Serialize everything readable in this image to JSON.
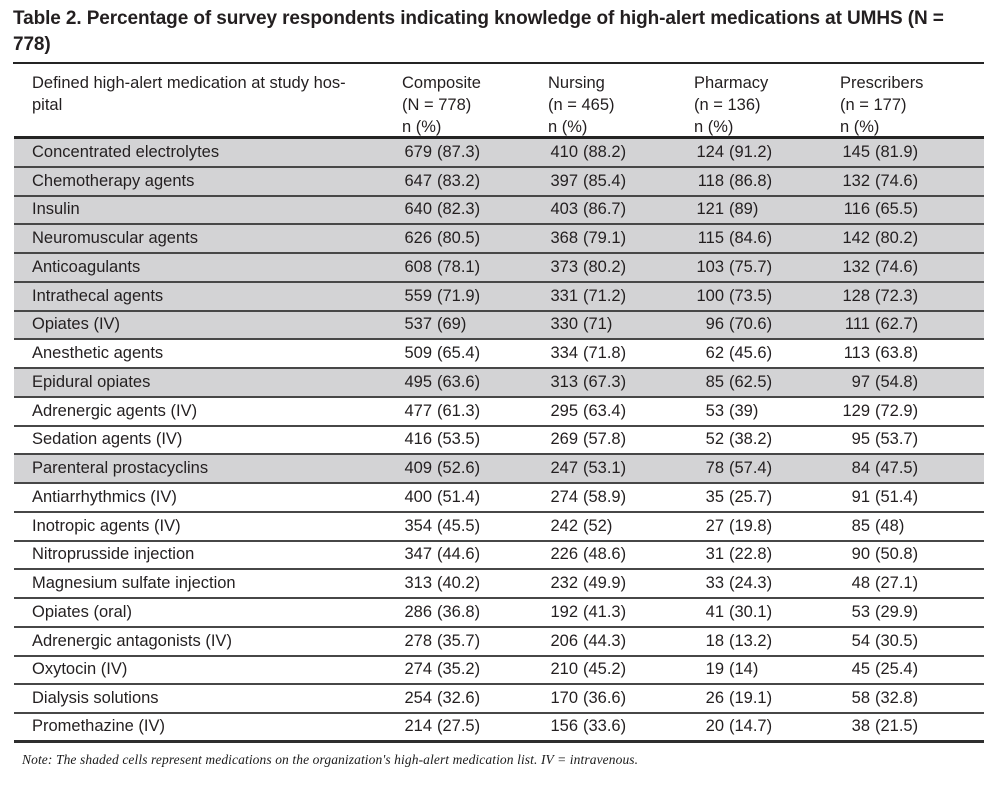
{
  "title": {
    "line1": "Table 2. Percentage of survey respondents indicating knowledge of high-alert medications at UMHS (N =",
    "line2": "778)",
    "full": "Table 2. Percentage of survey respondents indicating knowledge of high-alert medications at UMHS (N = 778)"
  },
  "table": {
    "row_header": {
      "line1": "Defined high-alert medication at study hos-",
      "line2": "pital"
    },
    "columns": [
      {
        "group": "Composite",
        "n": "(N = 778)",
        "stat": "n (%)"
      },
      {
        "group": "Nursing",
        "n": "(n = 465)",
        "stat": "n (%)"
      },
      {
        "group": "Pharmacy",
        "n": "(n = 136)",
        "stat": "n (%)"
      },
      {
        "group": "Prescribers",
        "n": "(n = 177)",
        "stat": "n (%)"
      }
    ],
    "rows": [
      {
        "label": "Concentrated electrolytes",
        "shaded": true,
        "cells": [
          [
            "679",
            "(87.3)"
          ],
          [
            "410",
            "(88.2)"
          ],
          [
            "124",
            "(91.2)"
          ],
          [
            "145",
            "(81.9)"
          ]
        ]
      },
      {
        "label": "Chemotherapy agents",
        "shaded": true,
        "cells": [
          [
            "647",
            "(83.2)"
          ],
          [
            "397",
            "(85.4)"
          ],
          [
            "118",
            "(86.8)"
          ],
          [
            "132",
            "(74.6)"
          ]
        ]
      },
      {
        "label": "Insulin",
        "shaded": true,
        "cells": [
          [
            "640",
            "(82.3)"
          ],
          [
            "403",
            "(86.7)"
          ],
          [
            "121",
            "(89)"
          ],
          [
            "116",
            "(65.5)"
          ]
        ]
      },
      {
        "label": "Neuromuscular agents",
        "shaded": true,
        "cells": [
          [
            "626",
            "(80.5)"
          ],
          [
            "368",
            "(79.1)"
          ],
          [
            "115",
            "(84.6)"
          ],
          [
            "142",
            "(80.2)"
          ]
        ]
      },
      {
        "label": "Anticoagulants",
        "shaded": true,
        "cells": [
          [
            "608",
            "(78.1)"
          ],
          [
            "373",
            "(80.2)"
          ],
          [
            "103",
            "(75.7)"
          ],
          [
            "132",
            "(74.6)"
          ]
        ]
      },
      {
        "label": "Intrathecal agents",
        "shaded": true,
        "cells": [
          [
            "559",
            "(71.9)"
          ],
          [
            "331",
            "(71.2)"
          ],
          [
            "100",
            "(73.5)"
          ],
          [
            "128",
            "(72.3)"
          ]
        ]
      },
      {
        "label": "Opiates (IV)",
        "shaded": true,
        "cells": [
          [
            "537",
            "(69)"
          ],
          [
            "330",
            "(71)"
          ],
          [
            "96",
            "(70.6)"
          ],
          [
            "111",
            "(62.7)"
          ]
        ]
      },
      {
        "label": "Anesthetic agents",
        "shaded": false,
        "cells": [
          [
            "509",
            "(65.4)"
          ],
          [
            "334",
            "(71.8)"
          ],
          [
            "62",
            "(45.6)"
          ],
          [
            "113",
            "(63.8)"
          ]
        ]
      },
      {
        "label": "Epidural opiates",
        "shaded": true,
        "cells": [
          [
            "495",
            "(63.6)"
          ],
          [
            "313",
            "(67.3)"
          ],
          [
            "85",
            "(62.5)"
          ],
          [
            "97",
            "(54.8)"
          ]
        ]
      },
      {
        "label": "Adrenergic agents (IV)",
        "shaded": false,
        "cells": [
          [
            "477",
            "(61.3)"
          ],
          [
            "295",
            "(63.4)"
          ],
          [
            "53",
            "(39)"
          ],
          [
            "129",
            "(72.9)"
          ]
        ]
      },
      {
        "label": "Sedation agents (IV)",
        "shaded": false,
        "cells": [
          [
            "416",
            "(53.5)"
          ],
          [
            "269",
            "(57.8)"
          ],
          [
            "52",
            "(38.2)"
          ],
          [
            "95",
            "(53.7)"
          ]
        ]
      },
      {
        "label": "Parenteral prostacyclins",
        "shaded": true,
        "cells": [
          [
            "409",
            "(52.6)"
          ],
          [
            "247",
            "(53.1)"
          ],
          [
            "78",
            "(57.4)"
          ],
          [
            "84",
            "(47.5)"
          ]
        ]
      },
      {
        "label": "Antiarrhythmics (IV)",
        "shaded": false,
        "cells": [
          [
            "400",
            "(51.4)"
          ],
          [
            "274",
            "(58.9)"
          ],
          [
            "35",
            "(25.7)"
          ],
          [
            "91",
            "(51.4)"
          ]
        ]
      },
      {
        "label": "Inotropic agents (IV)",
        "shaded": false,
        "cells": [
          [
            "354",
            "(45.5)"
          ],
          [
            "242",
            "(52)"
          ],
          [
            "27",
            "(19.8)"
          ],
          [
            "85",
            "(48)"
          ]
        ]
      },
      {
        "label": "Nitroprusside injection",
        "shaded": false,
        "cells": [
          [
            "347",
            "(44.6)"
          ],
          [
            "226",
            "(48.6)"
          ],
          [
            "31",
            "(22.8)"
          ],
          [
            "90",
            "(50.8)"
          ]
        ]
      },
      {
        "label": "Magnesium sulfate injection",
        "shaded": false,
        "cells": [
          [
            "313",
            "(40.2)"
          ],
          [
            "232",
            "(49.9)"
          ],
          [
            "33",
            "(24.3)"
          ],
          [
            "48",
            "(27.1)"
          ]
        ]
      },
      {
        "label": "Opiates (oral)",
        "shaded": false,
        "cells": [
          [
            "286",
            "(36.8)"
          ],
          [
            "192",
            "(41.3)"
          ],
          [
            "41",
            "(30.1)"
          ],
          [
            "53",
            "(29.9)"
          ]
        ]
      },
      {
        "label": "Adrenergic antagonists (IV)",
        "shaded": false,
        "cells": [
          [
            "278",
            "(35.7)"
          ],
          [
            "206",
            "(44.3)"
          ],
          [
            "18",
            "(13.2)"
          ],
          [
            "54",
            "(30.5)"
          ]
        ]
      },
      {
        "label": "Oxytocin (IV)",
        "shaded": false,
        "cells": [
          [
            "274",
            "(35.2)"
          ],
          [
            "210",
            "(45.2)"
          ],
          [
            "19",
            "(14)"
          ],
          [
            "45",
            "(25.4)"
          ]
        ]
      },
      {
        "label": "Dialysis solutions",
        "shaded": false,
        "cells": [
          [
            "254",
            "(32.6)"
          ],
          [
            "170",
            "(36.6)"
          ],
          [
            "26",
            "(19.1)"
          ],
          [
            "58",
            "(32.8)"
          ]
        ]
      },
      {
        "label": "Promethazine (IV)",
        "shaded": false,
        "cells": [
          [
            "214",
            "(27.5)"
          ],
          [
            "156",
            "(33.6)"
          ],
          [
            "20",
            "(14.7)"
          ],
          [
            "38",
            "(21.5)"
          ]
        ]
      }
    ]
  },
  "note": "Note: The shaded cells represent medications on the organization's high-alert medication list. IV = intravenous.",
  "colors": {
    "row_shading": "#d3d3d5",
    "rule_dark": "#242424",
    "row_rule": "#474747",
    "text": "#231f20"
  }
}
